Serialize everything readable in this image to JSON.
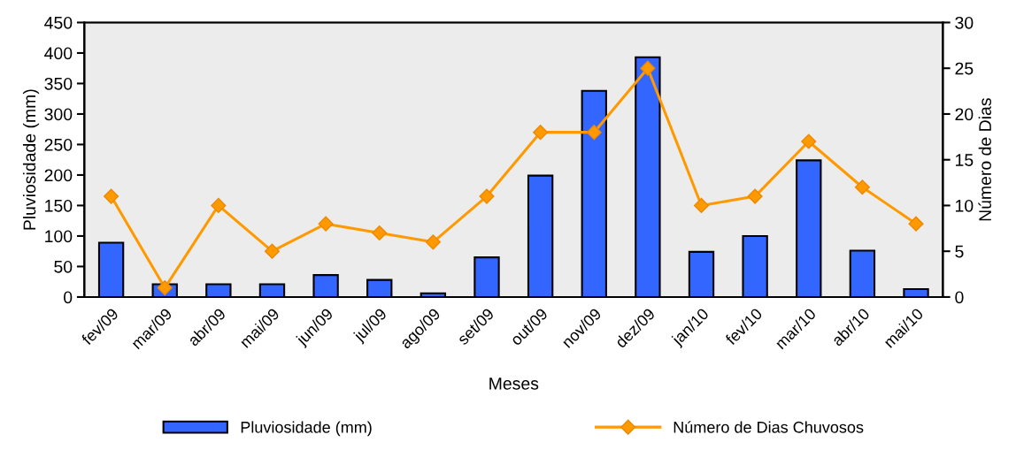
{
  "chart_data": {
    "type": "bar",
    "xlabel": "Meses",
    "ylabel": "Pluviosidade (mm)",
    "y2label": "Número de Dias",
    "categories": [
      "fev/09",
      "mar/09",
      "abr/09",
      "mai/09",
      "jun/09",
      "jul/09",
      "ago/09",
      "set/09",
      "out/09",
      "nov/09",
      "dez/09",
      "jan/10",
      "fev/10",
      "mar/10",
      "abr/10",
      "mai/10"
    ],
    "series": [
      {
        "name": "Pluviosidade (mm)",
        "color": "#3366ff",
        "values": [
          89,
          21,
          21,
          21,
          36,
          28,
          6,
          65,
          199,
          338,
          393,
          74,
          100,
          224,
          76,
          13
        ]
      },
      {
        "name": "Número de Dias Chuvosos",
        "type": "line",
        "axis": "y2",
        "color": "#ff9900",
        "marker": "diamond",
        "values": [
          11,
          1,
          10,
          5,
          8,
          7,
          6,
          11,
          18,
          18,
          25,
          10,
          11,
          17,
          12,
          8
        ]
      }
    ],
    "ylim": [
      0,
      450
    ],
    "yticks": [
      0,
      50,
      100,
      150,
      200,
      250,
      300,
      350,
      400,
      450
    ],
    "y2lim": [
      0,
      30
    ],
    "y2ticks": [
      0,
      5,
      10,
      15,
      20,
      25,
      30
    ],
    "grid": false,
    "legend": "bottom"
  }
}
